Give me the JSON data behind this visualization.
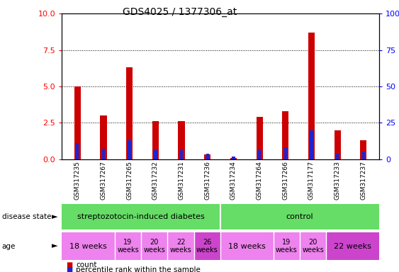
{
  "title": "GDS4025 / 1377306_at",
  "samples": [
    "GSM317235",
    "GSM317267",
    "GSM317265",
    "GSM317232",
    "GSM317231",
    "GSM317236",
    "GSM317234",
    "GSM317264",
    "GSM317266",
    "GSM317177",
    "GSM317233",
    "GSM317237"
  ],
  "count_values": [
    5.0,
    3.0,
    6.3,
    2.6,
    2.6,
    0.3,
    0.1,
    2.9,
    3.3,
    8.7,
    2.0,
    1.3
  ],
  "percentile_values": [
    1.1,
    0.7,
    1.3,
    0.6,
    0.6,
    0.35,
    0.2,
    0.6,
    0.8,
    2.0,
    0.35,
    0.5
  ],
  "count_color": "#cc0000",
  "percentile_color": "#2222cc",
  "ylim_left": [
    0,
    10
  ],
  "ylim_right": [
    0,
    100
  ],
  "yticks_left": [
    0,
    2.5,
    5.0,
    7.5,
    10
  ],
  "yticks_right": [
    0,
    25,
    50,
    75,
    100
  ],
  "disease_state_groups": [
    {
      "label": "streptozotocin-induced diabetes",
      "start": 0,
      "end": 6,
      "color": "#66dd66"
    },
    {
      "label": "control",
      "start": 6,
      "end": 12,
      "color": "#66dd66"
    }
  ],
  "age_groups": [
    {
      "label": "18 weeks",
      "start": 0,
      "end": 2,
      "color": "#ee82ee",
      "fontsize": 8,
      "two_line": false
    },
    {
      "label": "19\nweeks",
      "start": 2,
      "end": 3,
      "color": "#ee82ee",
      "fontsize": 7,
      "two_line": true
    },
    {
      "label": "20\nweeks",
      "start": 3,
      "end": 4,
      "color": "#ee82ee",
      "fontsize": 7,
      "two_line": true
    },
    {
      "label": "22\nweeks",
      "start": 4,
      "end": 5,
      "color": "#ee82ee",
      "fontsize": 7,
      "two_line": true
    },
    {
      "label": "26\nweeks",
      "start": 5,
      "end": 6,
      "color": "#cc44cc",
      "fontsize": 7,
      "two_line": true
    },
    {
      "label": "18 weeks",
      "start": 6,
      "end": 8,
      "color": "#ee82ee",
      "fontsize": 8,
      "two_line": false
    },
    {
      "label": "19\nweeks",
      "start": 8,
      "end": 9,
      "color": "#ee82ee",
      "fontsize": 7,
      "two_line": true
    },
    {
      "label": "20\nweeks",
      "start": 9,
      "end": 10,
      "color": "#ee82ee",
      "fontsize": 7,
      "two_line": true
    },
    {
      "label": "22 weeks",
      "start": 10,
      "end": 12,
      "color": "#cc44cc",
      "fontsize": 8,
      "two_line": false
    }
  ],
  "bg_color": "#ffffff",
  "plot_bg_color": "#ffffff",
  "tick_bg_color": "#d3d3d3",
  "legend_count_label": "count",
  "legend_percentile_label": "percentile rank within the sample"
}
